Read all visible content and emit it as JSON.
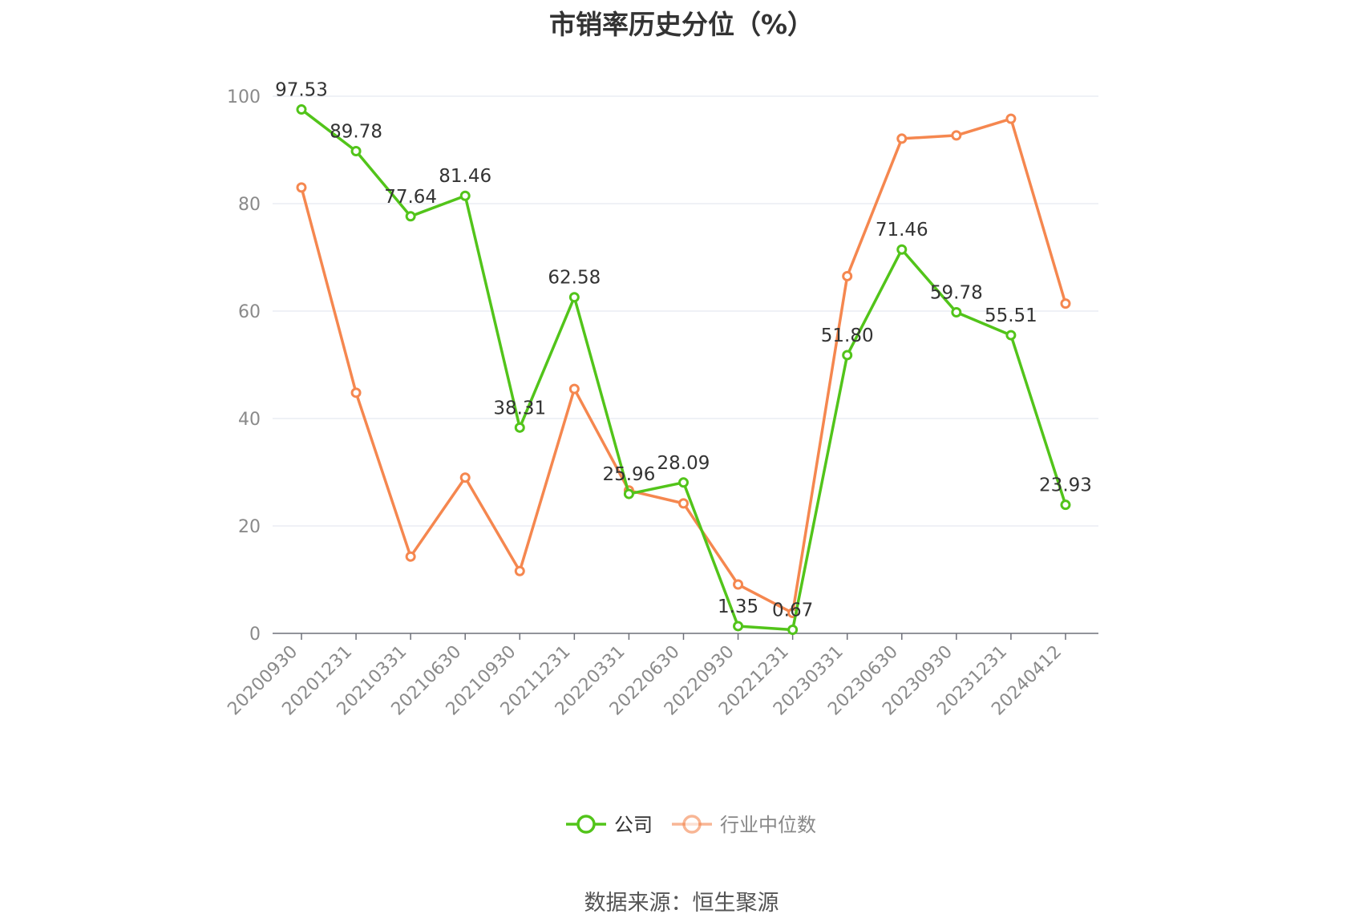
{
  "chart_data": {
    "type": "line",
    "title": "市销率历史分位（%）",
    "categories": [
      "20200930",
      "20201231",
      "20210331",
      "20210630",
      "20210930",
      "20211231",
      "20220331",
      "20220630",
      "20220930",
      "20221231",
      "20230331",
      "20230630",
      "20230930",
      "20231231",
      "20240412"
    ],
    "series": [
      {
        "name": "公司",
        "color": "#52c41a",
        "values": [
          97.53,
          89.78,
          77.64,
          81.46,
          38.31,
          62.58,
          25.96,
          28.09,
          1.35,
          0.67,
          51.8,
          71.46,
          59.78,
          55.51,
          23.93
        ],
        "labels": [
          "97.53",
          "89.78",
          "77.64",
          "81.46",
          "38.31",
          "62.58",
          "25.96",
          "28.09",
          "1.35",
          "0.67",
          "51.80",
          "71.46",
          "59.78",
          "55.51",
          "23.93"
        ]
      },
      {
        "name": "行业中位数",
        "color": "#f5874f",
        "values": [
          83.0,
          44.8,
          14.3,
          29.0,
          11.6,
          45.5,
          26.6,
          24.2,
          9.1,
          3.8,
          66.5,
          92.1,
          92.7,
          95.8,
          61.4
        ]
      }
    ],
    "ylim": [
      0,
      100
    ],
    "yticks": [
      0,
      20,
      40,
      60,
      80,
      100
    ],
    "grid": true,
    "legend": "bottom-center"
  },
  "source": "数据来源：恒生聚源"
}
